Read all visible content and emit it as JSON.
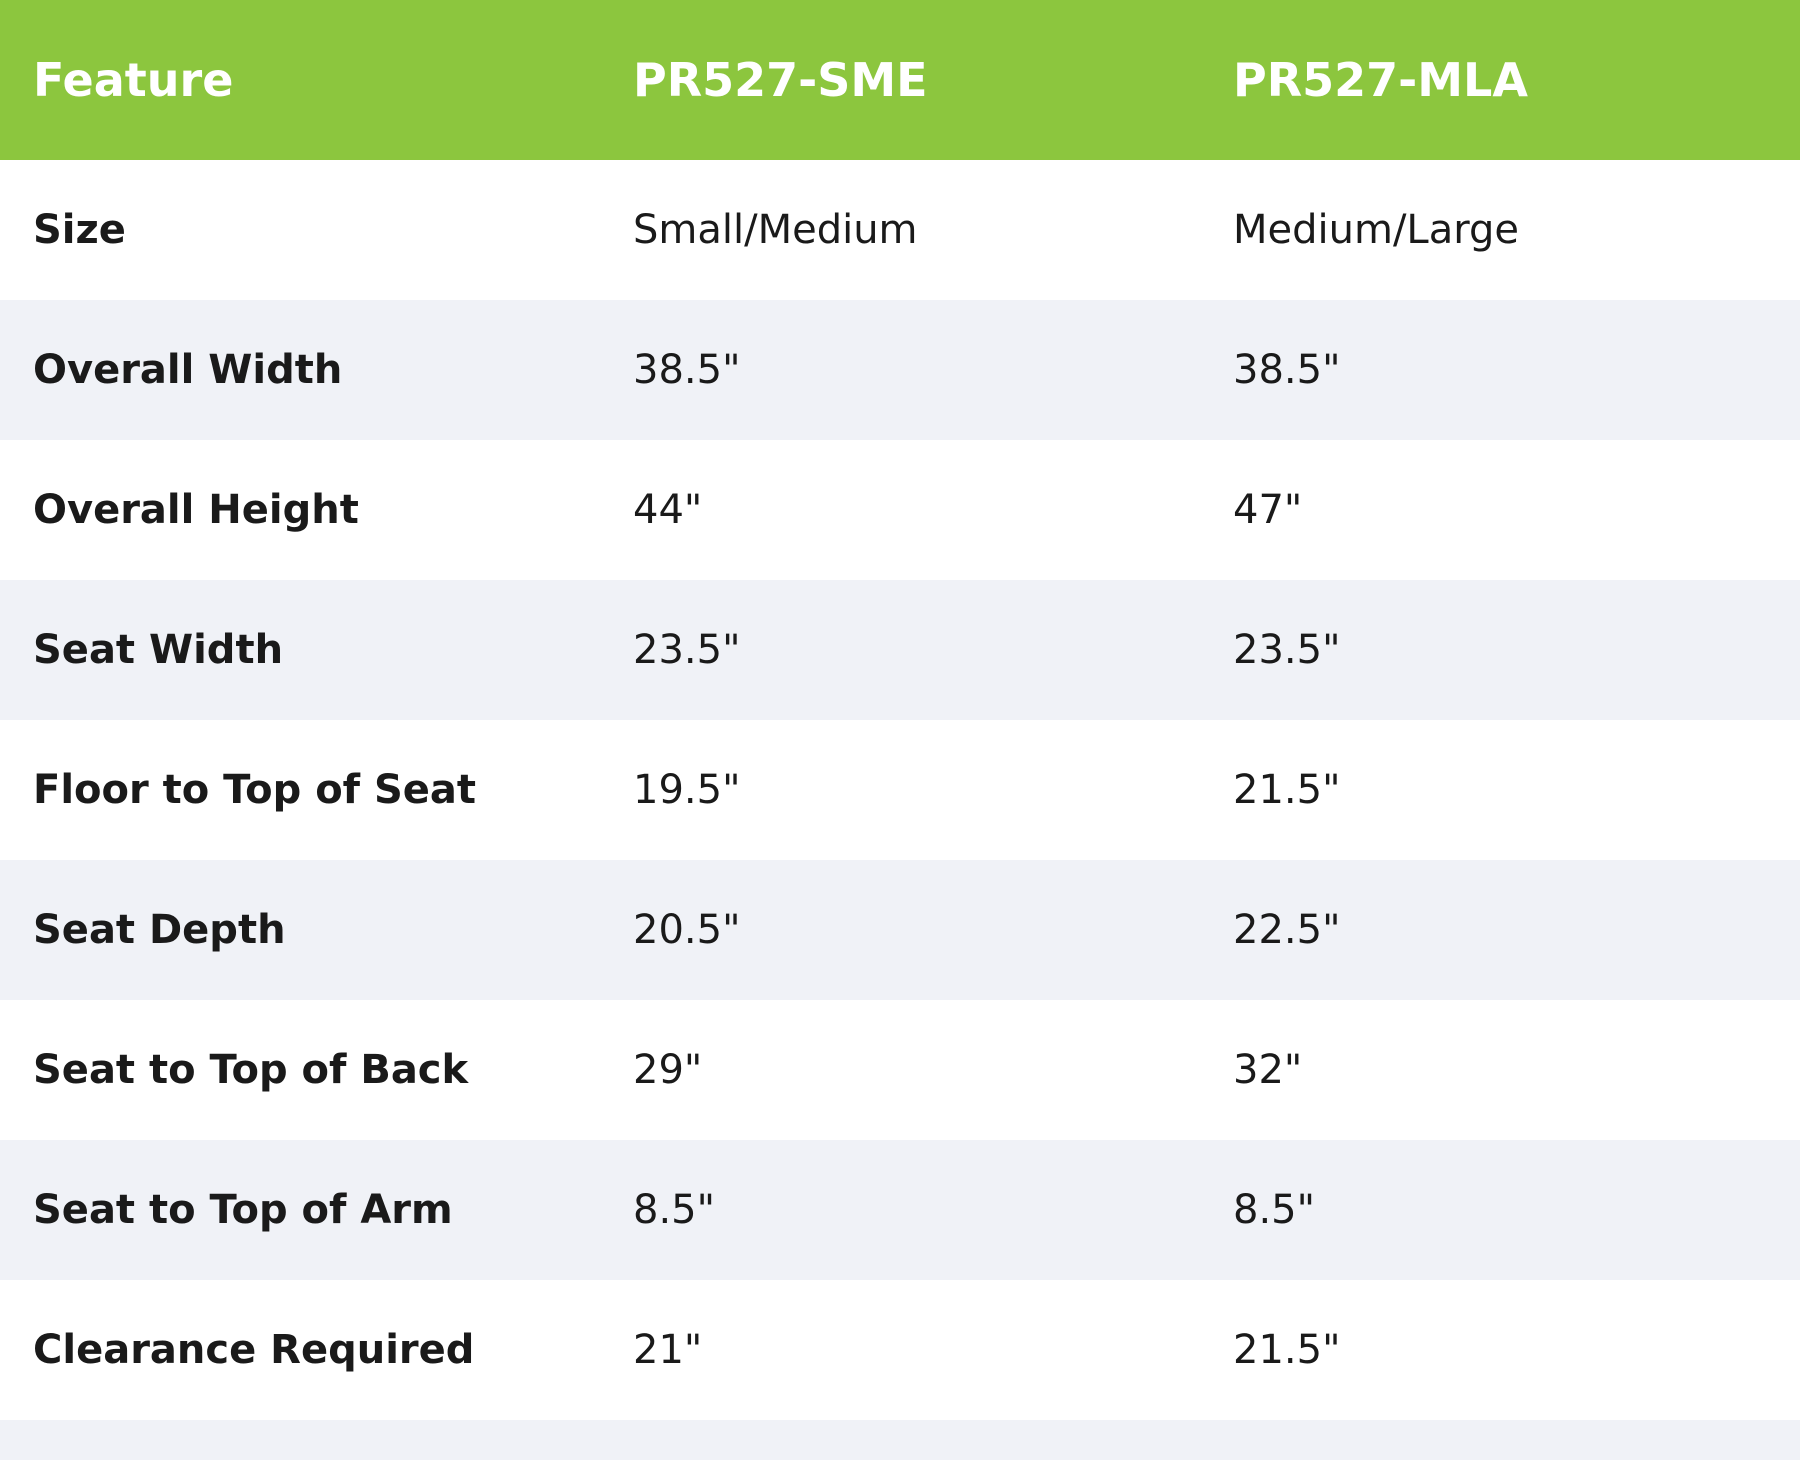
{
  "colors": {
    "header_bg": "#8CC63E",
    "header_text": "#FFFFFF",
    "row_alt_bg": "#F0F2F7",
    "row_bg": "#FFFFFF",
    "body_text": "#1A1A1A"
  },
  "chart_data": {
    "type": "table",
    "columns": [
      "Feature",
      "PR527-SME",
      "PR527-MLA"
    ],
    "rows": [
      [
        "Size",
        "Small/Medium",
        "Medium/Large"
      ],
      [
        "Overall Width",
        "38.5\"",
        "38.5\""
      ],
      [
        "Overall Height",
        "44\"",
        "47\""
      ],
      [
        "Seat Width",
        "23.5\"",
        "23.5\""
      ],
      [
        "Floor to Top of Seat",
        "19.5\"",
        "21.5\""
      ],
      [
        "Seat Depth",
        "20.5\"",
        "22.5\""
      ],
      [
        "Seat to Top of Back",
        "29\"",
        "32\""
      ],
      [
        "Seat to Top of Arm",
        "8.5\"",
        "8.5\""
      ],
      [
        "Clearance Required",
        "21\"",
        "21.5\""
      ]
    ]
  }
}
